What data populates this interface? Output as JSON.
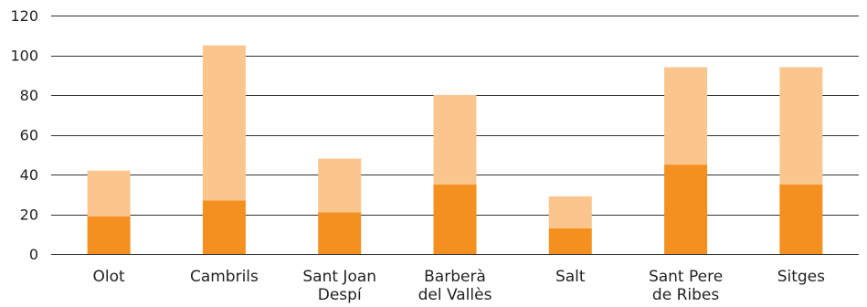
{
  "chart_data": {
    "type": "bar",
    "stacked": true,
    "categories": [
      [
        "Olot"
      ],
      [
        "Cambrils"
      ],
      [
        "Sant Joan",
        "Despí"
      ],
      [
        "Barberà",
        "del Vallès"
      ],
      [
        "Salt"
      ],
      [
        "Sant Pere",
        "de Ribes"
      ],
      [
        "Sitges"
      ]
    ],
    "series": [
      {
        "values": [
          19,
          27,
          21,
          35,
          13,
          45,
          35
        ],
        "color": "#f39020"
      },
      {
        "values": [
          23,
          78,
          27,
          45,
          16,
          49,
          59
        ],
        "color": "#fbc68e"
      }
    ],
    "y_ticks": [
      0,
      20,
      40,
      60,
      80,
      100,
      120
    ],
    "ylim": [
      0,
      120
    ],
    "grid": true,
    "legend": "none",
    "gridline_color": "#333333"
  }
}
